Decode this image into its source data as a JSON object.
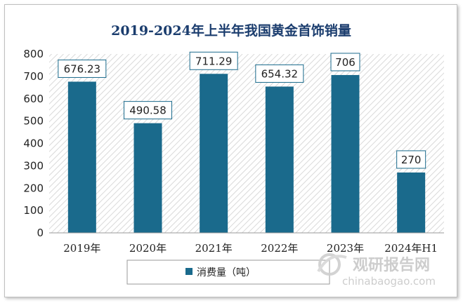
{
  "chart_data": {
    "type": "bar",
    "title": "2019-2024年上半年我国黄金首饰销量",
    "categories": [
      "2019年",
      "2020年",
      "2021年",
      "2022年",
      "2023年",
      "2024年H1"
    ],
    "series": [
      {
        "name": "消费量（吨）",
        "values": [
          676.23,
          490.58,
          711.29,
          654.32,
          706,
          270
        ]
      }
    ],
    "data_labels": [
      "676.23",
      "490.58",
      "711.29",
      "654.32",
      "706",
      "270"
    ],
    "ylim": [
      0,
      800
    ],
    "yticks": [
      0,
      100,
      200,
      300,
      400,
      500,
      600,
      700,
      800
    ],
    "bar_color": "#1a6a8c",
    "grid": false,
    "legend_position": "bottom"
  },
  "watermark": {
    "brand": "观研报告网",
    "url": "chinabaogao.com",
    "logo_icon": "globe-swoosh-icon"
  }
}
